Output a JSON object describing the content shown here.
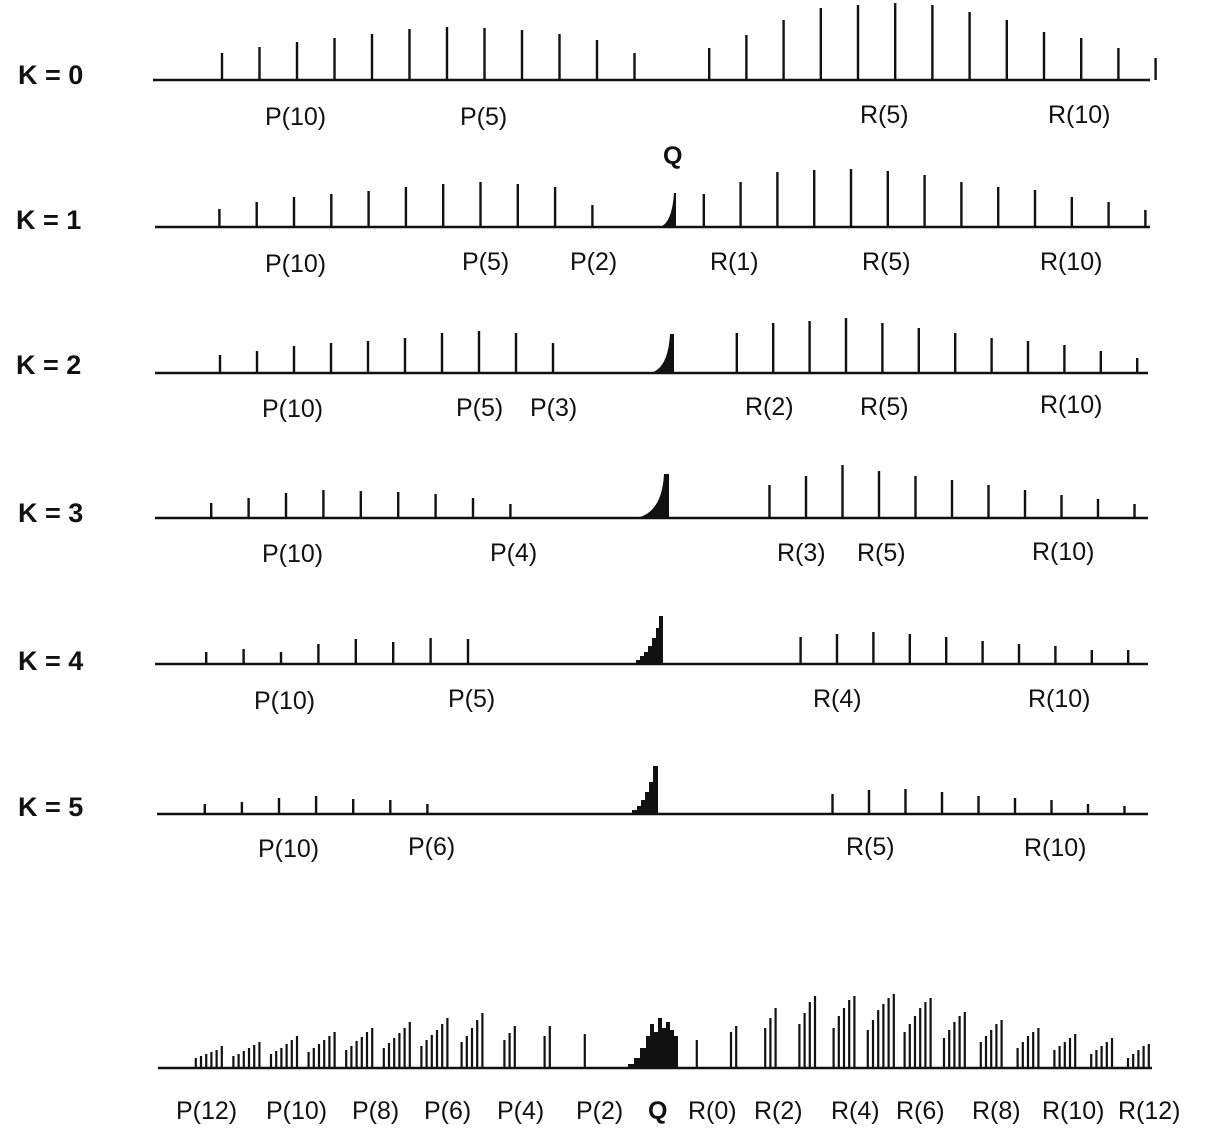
{
  "rows": [
    {
      "k_label": "K = 0",
      "branch_labels": [
        "P(10)",
        "P(5)",
        "R(5)",
        "R(10)"
      ],
      "lines": [
        {
          "j": 12,
          "h": 27
        },
        {
          "j": 11,
          "h": 33
        },
        {
          "j": 10,
          "h": 38
        },
        {
          "j": 9,
          "h": 42
        },
        {
          "j": 8,
          "h": 46
        },
        {
          "j": 7,
          "h": 51
        },
        {
          "j": 6,
          "h": 53
        },
        {
          "j": 5,
          "h": 52
        },
        {
          "j": 4,
          "h": 50
        },
        {
          "j": 3,
          "h": 46
        },
        {
          "j": 2,
          "h": 40
        },
        {
          "j": 1,
          "h": 27
        },
        {
          "j": -1,
          "h": 32
        },
        {
          "j": -2,
          "h": 45
        },
        {
          "j": -3,
          "h": 60
        },
        {
          "j": -4,
          "h": 72
        },
        {
          "j": -5,
          "h": 75
        },
        {
          "j": -6,
          "h": 77
        },
        {
          "j": -7,
          "h": 75
        },
        {
          "j": -8,
          "h": 68
        },
        {
          "j": -9,
          "h": 60
        },
        {
          "j": -10,
          "h": 48
        },
        {
          "j": -11,
          "h": 42
        },
        {
          "j": -12,
          "h": 32
        },
        {
          "j": -13,
          "h": 22
        }
      ]
    },
    {
      "k_label": "K = 1",
      "branch_labels": [
        "P(10)",
        "P(5)",
        "P(2)",
        "R(1)",
        "R(5)",
        "R(10)"
      ],
      "q_label": "Q",
      "lines": [
        {
          "j": 12,
          "h": 18
        },
        {
          "j": 11,
          "h": 25
        },
        {
          "j": 10,
          "h": 30
        },
        {
          "j": 9,
          "h": 33
        },
        {
          "j": 8,
          "h": 36
        },
        {
          "j": 7,
          "h": 40
        },
        {
          "j": 6,
          "h": 43
        },
        {
          "j": 5,
          "h": 45
        },
        {
          "j": 4,
          "h": 43
        },
        {
          "j": 3,
          "h": 40
        },
        {
          "j": 2,
          "h": 22
        },
        {
          "j": -1,
          "h": 33
        },
        {
          "j": -2,
          "h": 45
        },
        {
          "j": -3,
          "h": 55
        },
        {
          "j": -4,
          "h": 57
        },
        {
          "j": -5,
          "h": 58
        },
        {
          "j": -6,
          "h": 56
        },
        {
          "j": -7,
          "h": 52
        },
        {
          "j": -8,
          "h": 45
        },
        {
          "j": -9,
          "h": 40
        },
        {
          "j": -10,
          "h": 37
        },
        {
          "j": -11,
          "h": 30
        },
        {
          "j": -12,
          "h": 25
        },
        {
          "j": -13,
          "h": 17
        }
      ]
    },
    {
      "k_label": "K = 2",
      "branch_labels": [
        "P(10)",
        "P(5)",
        "P(3)",
        "R(2)",
        "R(5)",
        "R(10)"
      ],
      "lines": [
        {
          "j": 12,
          "h": 18
        },
        {
          "j": 11,
          "h": 22
        },
        {
          "j": 10,
          "h": 27
        },
        {
          "j": 9,
          "h": 30
        },
        {
          "j": 8,
          "h": 32
        },
        {
          "j": 7,
          "h": 35
        },
        {
          "j": 6,
          "h": 40
        },
        {
          "j": 5,
          "h": 42
        },
        {
          "j": 4,
          "h": 40
        },
        {
          "j": 3,
          "h": 30
        },
        {
          "j": -2,
          "h": 40
        },
        {
          "j": -3,
          "h": 50
        },
        {
          "j": -4,
          "h": 52
        },
        {
          "j": -5,
          "h": 55
        },
        {
          "j": -6,
          "h": 50
        },
        {
          "j": -7,
          "h": 45
        },
        {
          "j": -8,
          "h": 40
        },
        {
          "j": -9,
          "h": 35
        },
        {
          "j": -10,
          "h": 32
        },
        {
          "j": -11,
          "h": 28
        },
        {
          "j": -12,
          "h": 22
        },
        {
          "j": -13,
          "h": 15
        }
      ]
    },
    {
      "k_label": "K = 3",
      "branch_labels": [
        "P(10)",
        "P(4)",
        "R(3)",
        "R(5)",
        "R(10)"
      ],
      "lines": [
        {
          "j": 12,
          "h": 15
        },
        {
          "j": 11,
          "h": 20
        },
        {
          "j": 10,
          "h": 25
        },
        {
          "j": 9,
          "h": 28
        },
        {
          "j": 8,
          "h": 27
        },
        {
          "j": 7,
          "h": 26
        },
        {
          "j": 6,
          "h": 24
        },
        {
          "j": 5,
          "h": 20
        },
        {
          "j": 4,
          "h": 14
        },
        {
          "j": -3,
          "h": 33
        },
        {
          "j": -4,
          "h": 42
        },
        {
          "j": -5,
          "h": 53
        },
        {
          "j": -6,
          "h": 47
        },
        {
          "j": -7,
          "h": 42
        },
        {
          "j": -8,
          "h": 38
        },
        {
          "j": -9,
          "h": 33
        },
        {
          "j": -10,
          "h": 28
        },
        {
          "j": -11,
          "h": 23
        },
        {
          "j": -12,
          "h": 19
        },
        {
          "j": -13,
          "h": 14
        }
      ]
    },
    {
      "k_label": "K = 4",
      "branch_labels": [
        "P(10)",
        "P(5)",
        "R(4)",
        "R(10)"
      ],
      "lines": [
        {
          "j": 12,
          "h": 12
        },
        {
          "j": 11,
          "h": 15
        },
        {
          "j": 10,
          "h": 12
        },
        {
          "j": 9,
          "h": 20
        },
        {
          "j": 8,
          "h": 25
        },
        {
          "j": 7,
          "h": 22
        },
        {
          "j": 6,
          "h": 26
        },
        {
          "j": 5,
          "h": 25
        },
        {
          "j": -4,
          "h": 27
        },
        {
          "j": -5,
          "h": 30
        },
        {
          "j": -6,
          "h": 32
        },
        {
          "j": -7,
          "h": 30
        },
        {
          "j": -8,
          "h": 27
        },
        {
          "j": -9,
          "h": 23
        },
        {
          "j": -10,
          "h": 20
        },
        {
          "j": -11,
          "h": 18
        },
        {
          "j": -12,
          "h": 14
        },
        {
          "j": -13,
          "h": 14
        }
      ]
    },
    {
      "k_label": "K = 5",
      "branch_labels": [
        "P(10)",
        "P(6)",
        "R(5)",
        "R(10)"
      ],
      "lines": [
        {
          "j": 12,
          "h": 10
        },
        {
          "j": 11,
          "h": 12
        },
        {
          "j": 10,
          "h": 16
        },
        {
          "j": 9,
          "h": 18
        },
        {
          "j": 8,
          "h": 15
        },
        {
          "j": 7,
          "h": 14
        },
        {
          "j": 6,
          "h": 10
        },
        {
          "j": -5,
          "h": 20
        },
        {
          "j": -6,
          "h": 24
        },
        {
          "j": -7,
          "h": 25
        },
        {
          "j": -8,
          "h": 22
        },
        {
          "j": -9,
          "h": 18
        },
        {
          "j": -10,
          "h": 16
        },
        {
          "j": -11,
          "h": 14
        },
        {
          "j": -12,
          "h": 10
        },
        {
          "j": -13,
          "h": 8
        }
      ]
    }
  ],
  "composite": {
    "branch_labels": [
      "P(12)",
      "P(10)",
      "P(8)",
      "P(6)",
      "P(4)",
      "P(2)",
      "Q",
      "R(0)",
      "R(2)",
      "R(4)",
      "R(6)",
      "R(8)",
      "R(10)",
      "R(12)"
    ],
    "groups": [
      {
        "j": 12,
        "heights": [
          10,
          12,
          14,
          16,
          18,
          22
        ]
      },
      {
        "j": 11,
        "heights": [
          12,
          14,
          17,
          20,
          23,
          26
        ]
      },
      {
        "j": 10,
        "heights": [
          14,
          17,
          20,
          24,
          28,
          32
        ]
      },
      {
        "j": 9,
        "heights": [
          16,
          20,
          24,
          28,
          32,
          36
        ]
      },
      {
        "j": 8,
        "heights": [
          18,
          22,
          27,
          31,
          36,
          40
        ]
      },
      {
        "j": 7,
        "heights": [
          20,
          25,
          30,
          35,
          40,
          46
        ]
      },
      {
        "j": 6,
        "heights": [
          22,
          28,
          33,
          38,
          44,
          50
        ]
      },
      {
        "j": 5,
        "heights": [
          26,
          32,
          40,
          48,
          55
        ]
      },
      {
        "j": 4,
        "heights": [
          28,
          35,
          42
        ]
      },
      {
        "j": 3,
        "heights": [
          32,
          42
        ]
      },
      {
        "j": 2,
        "heights": [
          34
        ]
      },
      {
        "j": -1,
        "heights": [
          28
        ]
      },
      {
        "j": -2,
        "heights": [
          36,
          42
        ]
      },
      {
        "j": -3,
        "heights": [
          40,
          50,
          60
        ]
      },
      {
        "j": -4,
        "heights": [
          44,
          55,
          66,
          72
        ]
      },
      {
        "j": -5,
        "heights": [
          40,
          52,
          60,
          68,
          72
        ]
      },
      {
        "j": -6,
        "heights": [
          38,
          48,
          58,
          64,
          70,
          74
        ]
      },
      {
        "j": -7,
        "heights": [
          36,
          44,
          52,
          60,
          66,
          70
        ]
      },
      {
        "j": -8,
        "heights": [
          30,
          38,
          46,
          52,
          56
        ]
      },
      {
        "j": -9,
        "heights": [
          26,
          32,
          38,
          44,
          48
        ]
      },
      {
        "j": -10,
        "heights": [
          20,
          26,
          32,
          36,
          40
        ]
      },
      {
        "j": -11,
        "heights": [
          18,
          22,
          26,
          30,
          34
        ]
      },
      {
        "j": -12,
        "heights": [
          14,
          18,
          22,
          26,
          30
        ]
      },
      {
        "j": -13,
        "heights": [
          10,
          14,
          18,
          22,
          24
        ]
      }
    ]
  }
}
